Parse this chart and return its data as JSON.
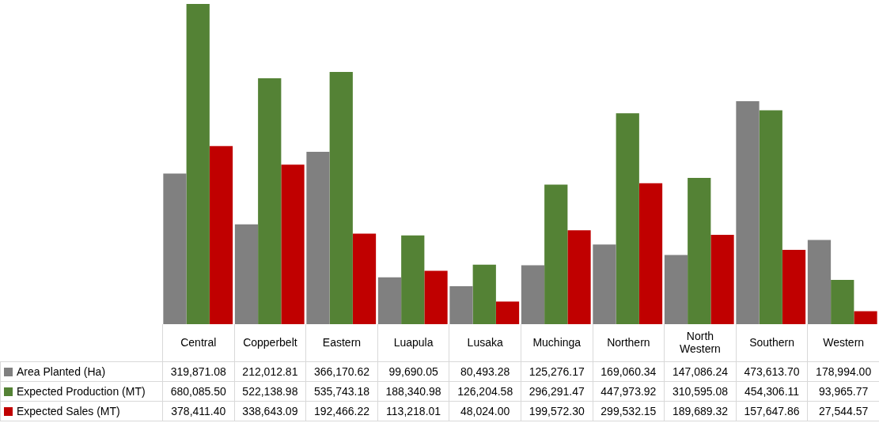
{
  "chart_data": {
    "type": "bar",
    "categories": [
      "Central",
      "Copperbelt",
      "Eastern",
      "Luapula",
      "Lusaka",
      "Muchinga",
      "Northern",
      "North Western",
      "Southern",
      "Western"
    ],
    "series": [
      {
        "name": "Area Planted (Ha)",
        "color": "#808080",
        "values": [
          319871.08,
          212012.81,
          366170.62,
          99690.05,
          80493.28,
          125276.17,
          169060.34,
          147086.24,
          473613.7,
          178994.0
        ],
        "value_labels": [
          "319,871.08",
          "212,012.81",
          "366,170.62",
          "99,690.05",
          "80,493.28",
          "125,276.17",
          "169,060.34",
          "147,086.24",
          "473,613.70",
          "178,994.00"
        ]
      },
      {
        "name": "Expected Production (MT)",
        "color": "#548235",
        "values": [
          680085.5,
          522138.98,
          535743.18,
          188340.98,
          126204.58,
          296291.47,
          447973.92,
          310595.08,
          454306.11,
          93965.77
        ],
        "value_labels": [
          "680,085.50",
          "522,138.98",
          "535,743.18",
          "188,340.98",
          "126,204.58",
          "296,291.47",
          "447,973.92",
          "310,595.08",
          "454,306.11",
          "93,965.77"
        ]
      },
      {
        "name": "Expected Sales (MT)",
        "color": "#c00000",
        "values": [
          378411.4,
          338643.09,
          192466.22,
          113218.01,
          48024.0,
          199572.3,
          299532.15,
          189689.32,
          157647.86,
          27544.57
        ],
        "value_labels": [
          "378,411.40",
          "338,643.09",
          "192,466.22",
          "113,218.01",
          "48,024.00",
          "199,572.30",
          "299,532.15",
          "189,689.32",
          "157,647.86",
          "27,544.57"
        ]
      }
    ],
    "legend": "bottom"
  }
}
